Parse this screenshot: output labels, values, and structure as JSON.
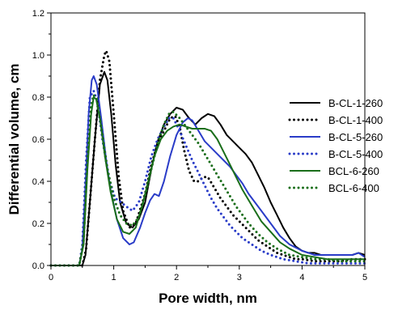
{
  "chart_data": {
    "type": "line",
    "title": "",
    "xlabel": "Pore width, nm",
    "ylabel": "Differential volume, cm",
    "xlim": [
      0,
      5
    ],
    "ylim": [
      0,
      1.2
    ],
    "x_ticks": [
      "0",
      "1",
      "2",
      "3",
      "4",
      "5"
    ],
    "y_ticks": [
      "0.0",
      "0.2",
      "0.4",
      "0.6",
      "0.8",
      "1.0",
      "1.2"
    ],
    "grid": false,
    "legend_position": "right",
    "series": [
      {
        "name": "B-CL-1-260",
        "color": "#000000",
        "dash": "solid",
        "points": [
          [
            0,
            0
          ],
          [
            0.5,
            0
          ],
          [
            0.55,
            0.05
          ],
          [
            0.62,
            0.3
          ],
          [
            0.7,
            0.6
          ],
          [
            0.78,
            0.86
          ],
          [
            0.85,
            0.92
          ],
          [
            0.9,
            0.88
          ],
          [
            0.96,
            0.72
          ],
          [
            1.03,
            0.48
          ],
          [
            1.1,
            0.3
          ],
          [
            1.2,
            0.2
          ],
          [
            1.3,
            0.18
          ],
          [
            1.4,
            0.22
          ],
          [
            1.5,
            0.3
          ],
          [
            1.6,
            0.46
          ],
          [
            1.7,
            0.59
          ],
          [
            1.8,
            0.67
          ],
          [
            1.9,
            0.72
          ],
          [
            2.0,
            0.75
          ],
          [
            2.1,
            0.74
          ],
          [
            2.2,
            0.7
          ],
          [
            2.3,
            0.67
          ],
          [
            2.4,
            0.7
          ],
          [
            2.5,
            0.72
          ],
          [
            2.6,
            0.71
          ],
          [
            2.7,
            0.67
          ],
          [
            2.8,
            0.62
          ],
          [
            2.9,
            0.59
          ],
          [
            3.0,
            0.56
          ],
          [
            3.1,
            0.53
          ],
          [
            3.2,
            0.49
          ],
          [
            3.3,
            0.43
          ],
          [
            3.4,
            0.37
          ],
          [
            3.5,
            0.3
          ],
          [
            3.6,
            0.24
          ],
          [
            3.7,
            0.18
          ],
          [
            3.8,
            0.13
          ],
          [
            3.9,
            0.09
          ],
          [
            4.0,
            0.07
          ],
          [
            4.1,
            0.06
          ],
          [
            4.2,
            0.06
          ],
          [
            4.3,
            0.05
          ],
          [
            4.4,
            0.05
          ],
          [
            4.5,
            0.05
          ],
          [
            4.6,
            0.05
          ],
          [
            4.7,
            0.05
          ],
          [
            4.8,
            0.05
          ],
          [
            4.9,
            0.06
          ],
          [
            5.0,
            0.05
          ]
        ]
      },
      {
        "name": "B-CL-1-400",
        "color": "#000000",
        "dash": "dotted",
        "points": [
          [
            0,
            0
          ],
          [
            0.5,
            0
          ],
          [
            0.56,
            0.08
          ],
          [
            0.62,
            0.3
          ],
          [
            0.7,
            0.6
          ],
          [
            0.78,
            0.88
          ],
          [
            0.85,
            1.0
          ],
          [
            0.88,
            1.02
          ],
          [
            0.93,
            0.97
          ],
          [
            1.0,
            0.72
          ],
          [
            1.08,
            0.42
          ],
          [
            1.15,
            0.26
          ],
          [
            1.25,
            0.18
          ],
          [
            1.35,
            0.2
          ],
          [
            1.5,
            0.34
          ],
          [
            1.6,
            0.48
          ],
          [
            1.7,
            0.58
          ],
          [
            1.8,
            0.64
          ],
          [
            1.9,
            0.7
          ],
          [
            1.98,
            0.71
          ],
          [
            2.05,
            0.66
          ],
          [
            2.12,
            0.55
          ],
          [
            2.2,
            0.45
          ],
          [
            2.28,
            0.4
          ],
          [
            2.35,
            0.4
          ],
          [
            2.42,
            0.42
          ],
          [
            2.5,
            0.42
          ],
          [
            2.6,
            0.37
          ],
          [
            2.7,
            0.32
          ],
          [
            2.8,
            0.28
          ],
          [
            2.9,
            0.24
          ],
          [
            3.0,
            0.21
          ],
          [
            3.1,
            0.18
          ],
          [
            3.2,
            0.15
          ],
          [
            3.3,
            0.12
          ],
          [
            3.4,
            0.1
          ],
          [
            3.5,
            0.08
          ],
          [
            3.6,
            0.06
          ],
          [
            3.7,
            0.05
          ],
          [
            3.8,
            0.04
          ],
          [
            3.9,
            0.03
          ],
          [
            4.0,
            0.03
          ],
          [
            4.2,
            0.02
          ],
          [
            4.4,
            0.02
          ],
          [
            4.6,
            0.02
          ],
          [
            4.8,
            0.03
          ],
          [
            5.0,
            0.03
          ]
        ]
      },
      {
        "name": "B-CL-5-260",
        "color": "#2a3cc8",
        "dash": "solid",
        "points": [
          [
            0,
            0
          ],
          [
            0.45,
            0
          ],
          [
            0.5,
            0.08
          ],
          [
            0.56,
            0.45
          ],
          [
            0.6,
            0.72
          ],
          [
            0.65,
            0.88
          ],
          [
            0.68,
            0.9
          ],
          [
            0.73,
            0.86
          ],
          [
            0.8,
            0.7
          ],
          [
            0.88,
            0.5
          ],
          [
            0.95,
            0.36
          ],
          [
            1.05,
            0.22
          ],
          [
            1.15,
            0.13
          ],
          [
            1.25,
            0.1
          ],
          [
            1.32,
            0.11
          ],
          [
            1.42,
            0.18
          ],
          [
            1.5,
            0.25
          ],
          [
            1.58,
            0.31
          ],
          [
            1.65,
            0.34
          ],
          [
            1.72,
            0.33
          ],
          [
            1.8,
            0.4
          ],
          [
            1.9,
            0.52
          ],
          [
            2.0,
            0.62
          ],
          [
            2.1,
            0.68
          ],
          [
            2.18,
            0.7
          ],
          [
            2.25,
            0.69
          ],
          [
            2.35,
            0.64
          ],
          [
            2.45,
            0.59
          ],
          [
            2.55,
            0.56
          ],
          [
            2.65,
            0.53
          ],
          [
            2.75,
            0.5
          ],
          [
            2.85,
            0.47
          ],
          [
            2.95,
            0.43
          ],
          [
            3.05,
            0.39
          ],
          [
            3.15,
            0.34
          ],
          [
            3.25,
            0.3
          ],
          [
            3.35,
            0.26
          ],
          [
            3.5,
            0.2
          ],
          [
            3.65,
            0.14
          ],
          [
            3.8,
            0.1
          ],
          [
            4.0,
            0.07
          ],
          [
            4.2,
            0.05
          ],
          [
            4.4,
            0.05
          ],
          [
            4.6,
            0.05
          ],
          [
            4.8,
            0.05
          ],
          [
            4.9,
            0.06
          ],
          [
            5.0,
            0.04
          ]
        ]
      },
      {
        "name": "B-CL-5-400",
        "color": "#2a3cc8",
        "dash": "dotted",
        "points": [
          [
            0,
            0
          ],
          [
            0.45,
            0
          ],
          [
            0.5,
            0.1
          ],
          [
            0.56,
            0.5
          ],
          [
            0.62,
            0.8
          ],
          [
            0.68,
            0.83
          ],
          [
            0.74,
            0.78
          ],
          [
            0.82,
            0.6
          ],
          [
            0.92,
            0.42
          ],
          [
            1.02,
            0.32
          ],
          [
            1.12,
            0.3
          ],
          [
            1.2,
            0.28
          ],
          [
            1.3,
            0.26
          ],
          [
            1.4,
            0.3
          ],
          [
            1.5,
            0.4
          ],
          [
            1.6,
            0.52
          ],
          [
            1.7,
            0.6
          ],
          [
            1.8,
            0.66
          ],
          [
            1.88,
            0.7
          ],
          [
            1.95,
            0.7
          ],
          [
            2.05,
            0.64
          ],
          [
            2.15,
            0.57
          ],
          [
            2.25,
            0.5
          ],
          [
            2.35,
            0.44
          ],
          [
            2.45,
            0.38
          ],
          [
            2.55,
            0.32
          ],
          [
            2.65,
            0.27
          ],
          [
            2.75,
            0.23
          ],
          [
            2.85,
            0.19
          ],
          [
            2.95,
            0.16
          ],
          [
            3.05,
            0.13
          ],
          [
            3.2,
            0.1
          ],
          [
            3.35,
            0.07
          ],
          [
            3.5,
            0.05
          ],
          [
            3.7,
            0.03
          ],
          [
            3.9,
            0.02
          ],
          [
            4.1,
            0.01
          ],
          [
            4.3,
            0.01
          ],
          [
            4.5,
            0.01
          ],
          [
            4.7,
            0.01
          ],
          [
            4.9,
            0.01
          ],
          [
            5.0,
            0.01
          ]
        ]
      },
      {
        "name": "BCL-6-260",
        "color": "#1a6e1a",
        "dash": "solid",
        "points": [
          [
            0,
            0
          ],
          [
            0.45,
            0
          ],
          [
            0.52,
            0.1
          ],
          [
            0.58,
            0.45
          ],
          [
            0.64,
            0.72
          ],
          [
            0.68,
            0.8
          ],
          [
            0.72,
            0.79
          ],
          [
            0.78,
            0.7
          ],
          [
            0.86,
            0.52
          ],
          [
            0.95,
            0.35
          ],
          [
            1.05,
            0.22
          ],
          [
            1.15,
            0.16
          ],
          [
            1.25,
            0.15
          ],
          [
            1.35,
            0.18
          ],
          [
            1.45,
            0.28
          ],
          [
            1.55,
            0.4
          ],
          [
            1.65,
            0.52
          ],
          [
            1.75,
            0.6
          ],
          [
            1.85,
            0.64
          ],
          [
            1.95,
            0.66
          ],
          [
            2.05,
            0.67
          ],
          [
            2.15,
            0.66
          ],
          [
            2.25,
            0.65
          ],
          [
            2.35,
            0.65
          ],
          [
            2.45,
            0.65
          ],
          [
            2.55,
            0.64
          ],
          [
            2.65,
            0.6
          ],
          [
            2.75,
            0.54
          ],
          [
            2.85,
            0.48
          ],
          [
            2.95,
            0.42
          ],
          [
            3.05,
            0.36
          ],
          [
            3.15,
            0.31
          ],
          [
            3.25,
            0.26
          ],
          [
            3.35,
            0.21
          ],
          [
            3.5,
            0.16
          ],
          [
            3.65,
            0.11
          ],
          [
            3.8,
            0.08
          ],
          [
            4.0,
            0.05
          ],
          [
            4.2,
            0.04
          ],
          [
            4.4,
            0.03
          ],
          [
            4.6,
            0.03
          ],
          [
            4.8,
            0.03
          ],
          [
            5.0,
            0.03
          ]
        ]
      },
      {
        "name": "BCL-6-400",
        "color": "#1a6e1a",
        "dash": "dotted",
        "points": [
          [
            0,
            0
          ],
          [
            0.45,
            0
          ],
          [
            0.52,
            0.12
          ],
          [
            0.58,
            0.5
          ],
          [
            0.64,
            0.76
          ],
          [
            0.68,
            0.81
          ],
          [
            0.73,
            0.79
          ],
          [
            0.8,
            0.66
          ],
          [
            0.9,
            0.46
          ],
          [
            1.0,
            0.32
          ],
          [
            1.1,
            0.24
          ],
          [
            1.2,
            0.2
          ],
          [
            1.3,
            0.19
          ],
          [
            1.4,
            0.23
          ],
          [
            1.5,
            0.33
          ],
          [
            1.6,
            0.46
          ],
          [
            1.7,
            0.58
          ],
          [
            1.8,
            0.67
          ],
          [
            1.88,
            0.72
          ],
          [
            1.95,
            0.73
          ],
          [
            2.05,
            0.7
          ],
          [
            2.15,
            0.66
          ],
          [
            2.25,
            0.62
          ],
          [
            2.35,
            0.58
          ],
          [
            2.45,
            0.53
          ],
          [
            2.55,
            0.48
          ],
          [
            2.65,
            0.43
          ],
          [
            2.75,
            0.38
          ],
          [
            2.85,
            0.33
          ],
          [
            2.95,
            0.28
          ],
          [
            3.05,
            0.24
          ],
          [
            3.15,
            0.2
          ],
          [
            3.3,
            0.15
          ],
          [
            3.45,
            0.11
          ],
          [
            3.6,
            0.08
          ],
          [
            3.8,
            0.05
          ],
          [
            4.0,
            0.04
          ],
          [
            4.2,
            0.03
          ],
          [
            4.4,
            0.03
          ],
          [
            4.6,
            0.02
          ],
          [
            4.8,
            0.02
          ],
          [
            5.0,
            0.02
          ]
        ]
      }
    ]
  }
}
